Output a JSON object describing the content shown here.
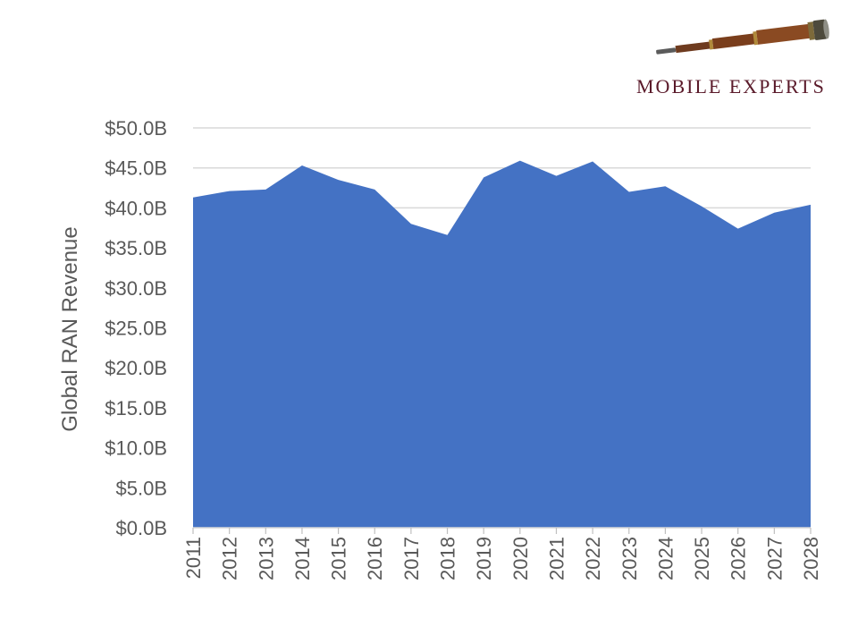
{
  "brand": {
    "logo_icon": "telescope-icon",
    "name": "MOBILE EXPERTS"
  },
  "colors": {
    "area_fill": "#4472c4",
    "grid": "#d9d9d9",
    "axis_text": "#595959",
    "brand": "#5a1a2a"
  },
  "chart_data": {
    "type": "area",
    "title": "",
    "xlabel": "",
    "ylabel": "Global RAN Revenue",
    "x": [
      "2011",
      "2012",
      "2013",
      "2014",
      "2015",
      "2016",
      "2017",
      "2018",
      "2019",
      "2020",
      "2021",
      "2022",
      "2023",
      "2024",
      "2025",
      "2026",
      "2027",
      "2028"
    ],
    "series": [
      {
        "values": [
          41.3,
          42.1,
          42.3,
          45.3,
          43.5,
          42.3,
          38.0,
          36.6,
          43.8,
          45.9,
          44.0,
          45.8,
          42.0,
          42.7,
          40.2,
          37.4,
          39.4,
          40.4
        ]
      }
    ],
    "ylim": [
      0,
      50
    ],
    "y_ticks": [
      "$0.0B",
      "$5.0B",
      "$10.0B",
      "$15.0B",
      "$20.0B",
      "$25.0B",
      "$30.0B",
      "$35.0B",
      "$40.0B",
      "$45.0B",
      "$50.0B"
    ],
    "grid": true,
    "legend": "none"
  }
}
